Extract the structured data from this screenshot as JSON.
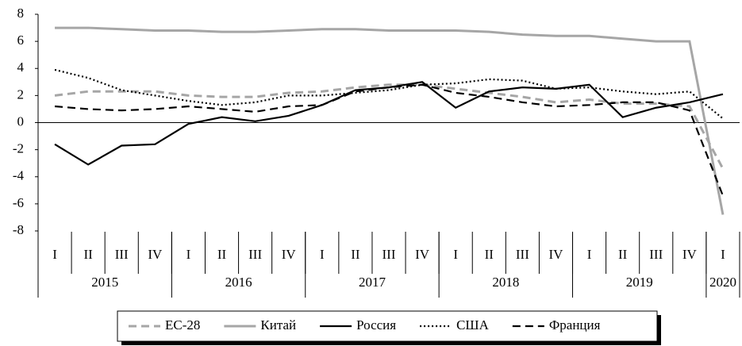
{
  "chart_data": {
    "type": "line",
    "categories": [
      "I",
      "II",
      "III",
      "IV",
      "I",
      "II",
      "III",
      "IV",
      "I",
      "II",
      "III",
      "IV",
      "I",
      "II",
      "III",
      "IV",
      "I",
      "II",
      "III",
      "IV",
      "I"
    ],
    "category_groups": [
      {
        "label": "2015",
        "count": 4
      },
      {
        "label": "2016",
        "count": 4
      },
      {
        "label": "2017",
        "count": 4
      },
      {
        "label": "2018",
        "count": 4
      },
      {
        "label": "2019",
        "count": 4
      },
      {
        "label": "2020",
        "count": 1
      }
    ],
    "ylim": [
      -8,
      8
    ],
    "yticks": [
      -8,
      -6,
      -4,
      -2,
      0,
      2,
      4,
      6,
      8
    ],
    "series": [
      {
        "name": "ЕС-28",
        "color": "#a6a6a6",
        "style": "dashed",
        "values": [
          2.0,
          2.3,
          2.3,
          2.3,
          2.0,
          1.9,
          1.9,
          2.2,
          2.3,
          2.6,
          2.8,
          2.8,
          2.5,
          2.2,
          1.9,
          1.5,
          1.7,
          1.4,
          1.4,
          1.2,
          -3.4
        ]
      },
      {
        "name": "Китай",
        "color": "#a6a6a6",
        "style": "solid",
        "values": [
          7.0,
          7.0,
          6.9,
          6.8,
          6.8,
          6.7,
          6.7,
          6.8,
          6.9,
          6.9,
          6.8,
          6.8,
          6.8,
          6.7,
          6.5,
          6.4,
          6.4,
          6.2,
          6.0,
          6.0,
          -6.8
        ]
      },
      {
        "name": "Россия",
        "color": "#000000",
        "style": "solid",
        "values": [
          -1.6,
          -3.1,
          -1.7,
          -1.6,
          -0.1,
          0.4,
          0.1,
          0.5,
          1.3,
          2.4,
          2.6,
          3.0,
          1.1,
          2.3,
          2.6,
          2.5,
          2.8,
          0.4,
          1.1,
          1.5,
          2.1
        ]
      },
      {
        "name": "США",
        "color": "#000000",
        "style": "dotted",
        "values": [
          3.9,
          3.3,
          2.4,
          2.0,
          1.6,
          1.3,
          1.5,
          2.0,
          2.0,
          2.2,
          2.4,
          2.8,
          2.9,
          3.2,
          3.1,
          2.5,
          2.6,
          2.3,
          2.1,
          2.3,
          0.3
        ]
      },
      {
        "name": "Франция",
        "color": "#000000",
        "style": "dashed",
        "values": [
          1.2,
          1.0,
          0.9,
          1.0,
          1.2,
          1.0,
          0.8,
          1.2,
          1.3,
          2.3,
          2.6,
          2.8,
          2.2,
          1.9,
          1.5,
          1.2,
          1.3,
          1.5,
          1.5,
          0.9,
          -5.4
        ]
      }
    ]
  }
}
